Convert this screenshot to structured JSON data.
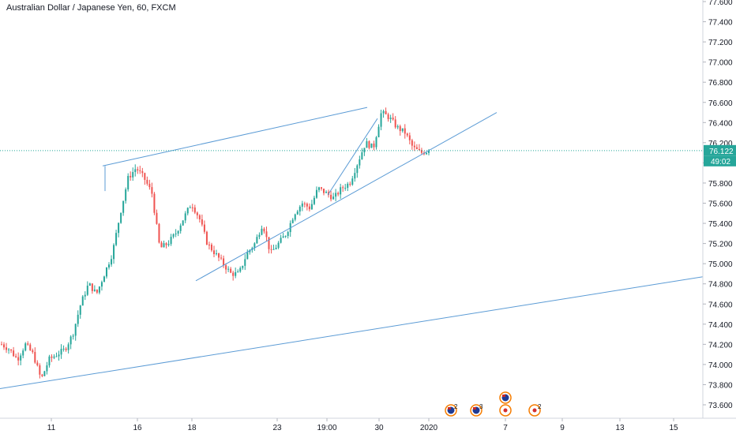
{
  "header": {
    "title": "Australian Dollar / Japanese Yen, 60, FXCM"
  },
  "price_label": {
    "price": "76.122",
    "countdown": "49:02"
  },
  "colors": {
    "up": "#26a69a",
    "down": "#ef5350",
    "trendline": "#5b9bd5",
    "price_line": "#26a69a",
    "axis_text": "#131722",
    "event_orange": "#f57c00"
  },
  "events": [
    {
      "icon": "au-flag-icon",
      "count": "2"
    },
    {
      "icon": "au-flag-icon",
      "count": "3"
    },
    {
      "icon": "au-flag-icon",
      "count": ""
    },
    {
      "icon": "jp-flag-icon",
      "count": ""
    },
    {
      "icon": "jp-flag-icon",
      "count": "2"
    }
  ],
  "chart_data": {
    "type": "candlestick",
    "title": "Australian Dollar / Japanese Yen, 60, FXCM",
    "y_ticks": [
      "77.600",
      "77.400",
      "77.200",
      "77.000",
      "76.800",
      "76.600",
      "76.400",
      "76.200",
      "76.000",
      "75.800",
      "75.600",
      "75.400",
      "75.200",
      "75.000",
      "74.800",
      "74.600",
      "74.400",
      "74.200",
      "74.000",
      "73.800",
      "73.600"
    ],
    "x_ticks": [
      "11",
      "16",
      "18",
      "23",
      "19:00",
      "30",
      "2020",
      "7",
      "9",
      "13",
      "15"
    ],
    "ylim": [
      73.55,
      77.65
    ],
    "last_price": 76.122,
    "price_path": [
      74.2,
      74.15,
      74.05,
      74.2,
      74.1,
      73.85,
      74.05,
      74.1,
      74.15,
      74.3,
      74.6,
      74.8,
      74.7,
      74.9,
      75.1,
      75.5,
      75.85,
      75.95,
      75.85,
      75.7,
      75.15,
      75.2,
      75.3,
      75.45,
      75.6,
      75.45,
      75.2,
      75.1,
      75.0,
      74.9,
      74.9,
      75.1,
      75.2,
      75.4,
      75.1,
      75.2,
      75.3,
      75.5,
      75.6,
      75.55,
      75.75,
      75.7,
      75.65,
      75.75,
      75.8,
      76.0,
      76.2,
      76.15,
      76.5,
      76.45,
      76.35,
      76.3,
      76.15,
      76.1,
      76.12
    ],
    "trendlines": [
      {
        "from": [
          "12 Dec",
          75.95
        ],
        "to": [
          "27 Dec",
          76.55
        ]
      },
      {
        "from": [
          "18 Dec",
          74.85
        ],
        "to": [
          "3 Jan",
          76.5
        ]
      },
      {
        "from": [
          "9 Dec",
          73.76
        ],
        "to": [
          "16 Jan",
          74.87
        ]
      },
      {
        "from": [
          "26 Dec 19:00",
          75.7
        ],
        "to": [
          "27 Dec",
          76.45
        ]
      }
    ]
  }
}
